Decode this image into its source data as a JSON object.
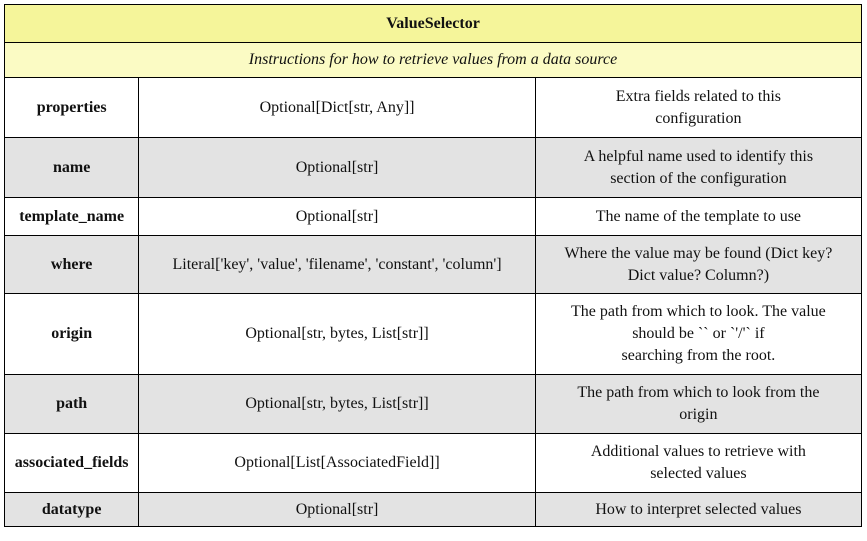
{
  "title": "ValueSelector",
  "subtitle": "Instructions for how to retrieve values from a data source",
  "rows": [
    {
      "name": "properties",
      "type": "Optional[Dict[str, Any]]",
      "desc_lines": [
        "Extra fields related to this",
        "configuration"
      ]
    },
    {
      "name": "name",
      "type": "Optional[str]",
      "desc_lines": [
        "A helpful name used to identify this",
        "section of the configuration"
      ]
    },
    {
      "name": "template_name",
      "type": "Optional[str]",
      "desc_lines": [
        "The name of the template to use"
      ]
    },
    {
      "name": "where",
      "type": "Literal['key', 'value', 'filename', 'constant', 'column']",
      "desc_lines": [
        "Where the value may be found (Dict key?",
        "Dict value? Column?)"
      ]
    },
    {
      "name": "origin",
      "type": "Optional[str, bytes, List[str]]",
      "desc_lines": [
        "The path from which to look. The value",
        "should be `` or `'/'` if",
        "searching from the root."
      ]
    },
    {
      "name": "path",
      "type": "Optional[str, bytes, List[str]]",
      "desc_lines": [
        "The path from which to look from the",
        "origin"
      ]
    },
    {
      "name": "associated_fields",
      "type": "Optional[List[AssociatedField]]",
      "desc_lines": [
        "Additional values to retrieve with",
        "selected values"
      ]
    },
    {
      "name": "datatype",
      "type": "Optional[str]",
      "desc_lines": [
        "How to interpret selected values"
      ]
    }
  ]
}
